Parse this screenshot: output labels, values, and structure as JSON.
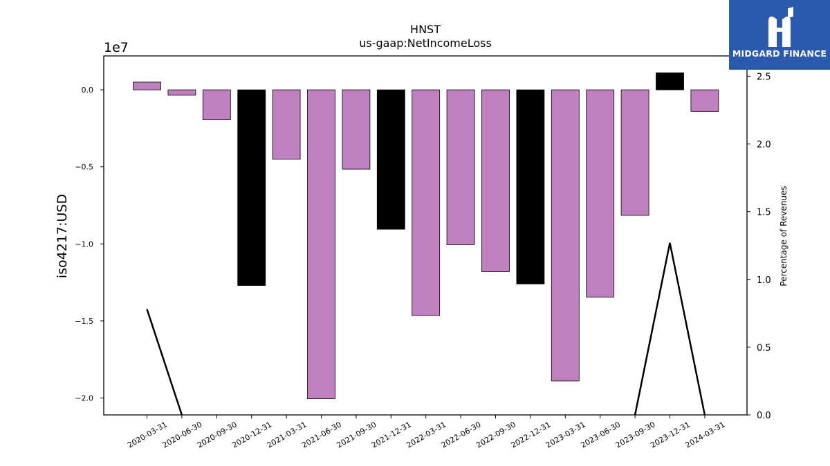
{
  "chart_data": {
    "type": "bar",
    "title": "HNST",
    "subtitle": "us-gaap:NetIncomeLoss",
    "ylabel": "iso4217:USD",
    "y_offset_label": "1e7",
    "y2label": "Percentage of Revenues",
    "ylim": [
      -21100000.0,
      2200000.0
    ],
    "y2lim": [
      0.0,
      2.65
    ],
    "y_ticks": [
      {
        "value": 0,
        "label": "0.0"
      },
      {
        "value": -5000000,
        "label": "−0.5"
      },
      {
        "value": -10000000,
        "label": "−1.0"
      },
      {
        "value": -15000000,
        "label": "−1.5"
      },
      {
        "value": -20000000,
        "label": "−2.0"
      }
    ],
    "y2_ticks": [
      {
        "value": 0.0,
        "label": "0.0"
      },
      {
        "value": 0.5,
        "label": "0.5"
      },
      {
        "value": 1.0,
        "label": "1.0"
      },
      {
        "value": 1.5,
        "label": "1.5"
      },
      {
        "value": 2.0,
        "label": "2.0"
      },
      {
        "value": 2.5,
        "label": "2.5"
      }
    ],
    "categories": [
      "2020-03-31",
      "2020-06-30",
      "2020-09-30",
      "2020-12-31",
      "2021-03-31",
      "2021-06-30",
      "2021-09-30",
      "2021-12-31",
      "2022-03-31",
      "2022-06-30",
      "2022-09-30",
      "2022-12-31",
      "2023-03-31",
      "2023-06-30",
      "2023-09-30",
      "2023-12-31",
      "2024-03-31"
    ],
    "values": [
      500000,
      -350000,
      -1950000,
      -12700000,
      -4500000,
      -20050000,
      -5150000,
      -9050000,
      -14650000,
      -10050000,
      -11800000,
      -12600000,
      -18900000,
      -13450000,
      -8150000,
      1100000,
      -1400000
    ],
    "bar_colors": [
      "#bf80bf",
      "#bf80bf",
      "#bf80bf",
      "#000000",
      "#bf80bf",
      "#bf80bf",
      "#bf80bf",
      "#000000",
      "#bf80bf",
      "#bf80bf",
      "#bf80bf",
      "#000000",
      "#bf80bf",
      "#bf80bf",
      "#bf80bf",
      "#000000",
      "#bf80bf"
    ],
    "line_series": [
      {
        "points": [
          {
            "x": "2020-03-31",
            "y": 0.78
          },
          {
            "x": "2020-06-30",
            "y": 0.0
          }
        ]
      },
      {
        "points": [
          {
            "x": "2023-09-30",
            "y": 0.0
          },
          {
            "x": "2023-12-31",
            "y": 1.27
          },
          {
            "x": "2024-03-31",
            "y": 0.0
          }
        ]
      }
    ],
    "grid": false,
    "legend": "none"
  },
  "branding": {
    "name": "MIDGARD FINANCE",
    "background": "#2b59ac"
  }
}
